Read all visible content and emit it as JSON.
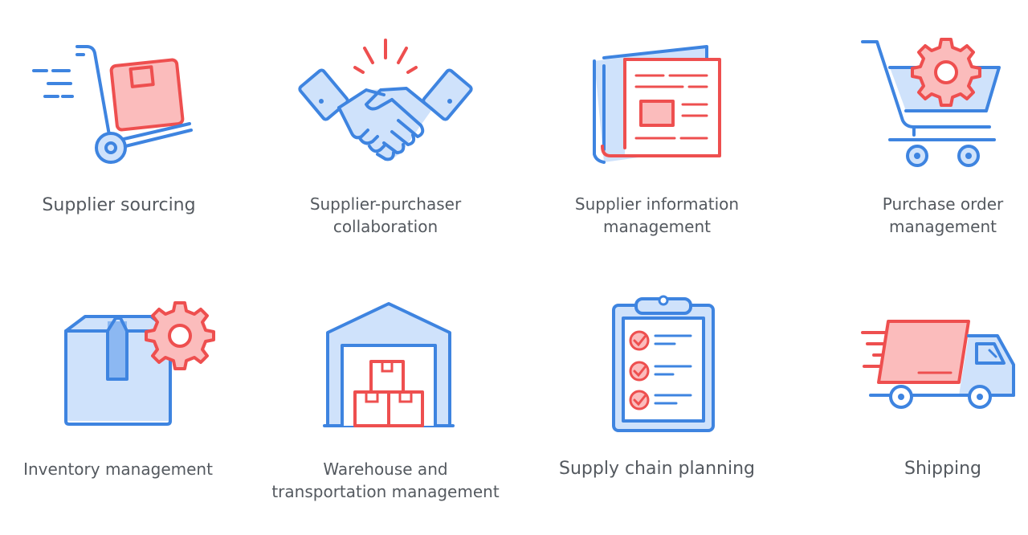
{
  "colors": {
    "blue": "#3e84e0",
    "red": "#ee4f4f",
    "text": "#54595f"
  },
  "items": [
    {
      "icon": "hand-truck-box-icon",
      "lines": [
        "Supplier sourcing"
      ]
    },
    {
      "icon": "handshake-icon",
      "lines": [
        "Supplier-purchaser",
        "collaboration"
      ]
    },
    {
      "icon": "newspaper-document-icon",
      "lines": [
        "Supplier information",
        "management"
      ]
    },
    {
      "icon": "shopping-cart-gear-icon",
      "lines": [
        "Purchase order",
        "management"
      ]
    },
    {
      "icon": "box-gear-icon",
      "lines": [
        "Inventory management"
      ]
    },
    {
      "icon": "warehouse-boxes-icon",
      "lines": [
        "Warehouse and",
        "transportation management"
      ]
    },
    {
      "icon": "clipboard-checklist-icon",
      "lines": [
        "Supply chain planning"
      ]
    },
    {
      "icon": "delivery-truck-icon",
      "lines": [
        "Shipping"
      ]
    }
  ]
}
